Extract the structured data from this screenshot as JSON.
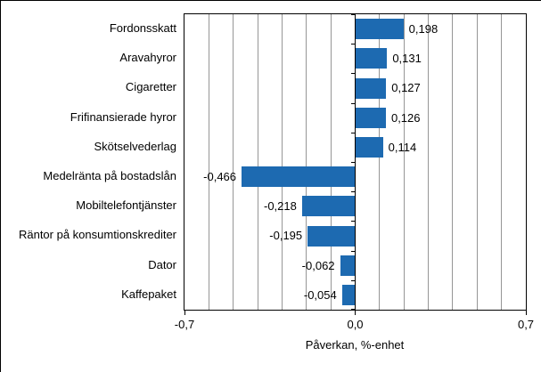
{
  "chart_data": {
    "type": "bar",
    "orientation": "horizontal",
    "title": "",
    "xlabel": "Påverkan, %-enhet",
    "ylabel": "",
    "categories": [
      "Fordonsskatt",
      "Aravahyror",
      "Cigaretter",
      "Frifinansierade hyror",
      "Skötselvederlag",
      "Medelränta på bostadslån",
      "Mobiltelefontjänster",
      "Räntor på konsumtionskrediter",
      "Dator",
      "Kaffepaket"
    ],
    "values": [
      0.198,
      0.131,
      0.127,
      0.126,
      0.114,
      -0.466,
      -0.218,
      -0.195,
      -0.062,
      -0.054
    ],
    "value_labels": [
      "0,198",
      "0,131",
      "0,127",
      "0,126",
      "0,114",
      "-0,466",
      "-0,218",
      "-0,195",
      "-0,062",
      "-0,054"
    ],
    "xlim": [
      -0.7,
      0.7
    ],
    "x_tick_labels": [
      "-0,7",
      "0,0",
      "0,7"
    ],
    "x_tick_values": [
      -0.7,
      0.0,
      0.7
    ],
    "grid_interval": 0.1,
    "grid": true,
    "legend_position": "none",
    "colors": {
      "bar": "#1D6AB1",
      "gridline": "#969696",
      "axis": "#000000",
      "background": "#FFFFFF",
      "text": "#000000"
    }
  }
}
